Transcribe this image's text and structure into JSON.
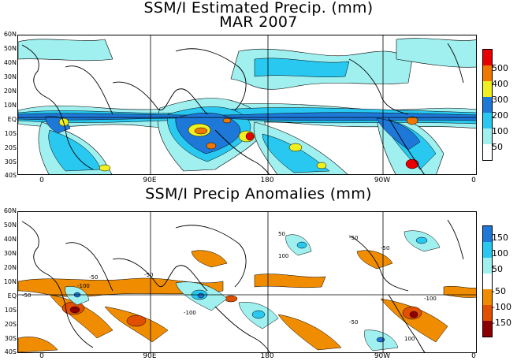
{
  "titles": {
    "top_line1": "SSM/I Estimated Precip. (mm)",
    "top_line2": "MAR 2007",
    "bottom": "SSM/I Precip Anomalies (mm)"
  },
  "lat_labels": [
    "60N",
    "50N",
    "40N",
    "30N",
    "20N",
    "10N",
    "EQ",
    "10S",
    "20S",
    "30S",
    "40S"
  ],
  "lon_labels": [
    "0",
    "90E",
    "180",
    "90W",
    "0"
  ],
  "precip_legend": {
    "labels": [
      "500",
      "400",
      "300",
      "200",
      "100",
      "50"
    ],
    "colors": [
      "#e80000",
      "#f07800",
      "#f0f020",
      "#1e78d8",
      "#28c8f0",
      "#a0f0f0",
      "#ffffff"
    ]
  },
  "anomaly_legend": {
    "labels": [
      "150",
      "100",
      "50",
      "-50",
      "-100",
      "-150"
    ],
    "colors": [
      "#1e78d8",
      "#28c8f0",
      "#a0f0f0",
      "#ffffff",
      "#f08c00",
      "#e05000",
      "#8c0000"
    ]
  },
  "contour_labels": [
    "-50",
    "-100",
    "50",
    "100"
  ]
}
